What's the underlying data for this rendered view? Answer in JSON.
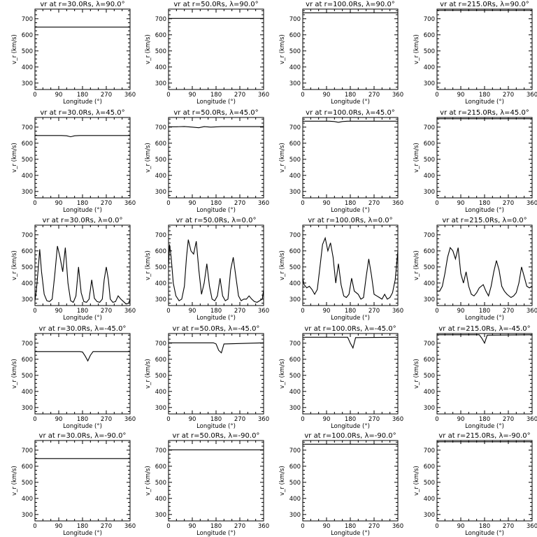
{
  "figure": {
    "xlabel": "Longitude (°)",
    "ylabel": "v_r (km/s)",
    "xticks": [
      "0",
      "90",
      "180",
      "270",
      "360"
    ],
    "yticks": [
      "300",
      "400",
      "500",
      "600",
      "700"
    ]
  },
  "chart_data": [
    {
      "type": "line",
      "title": "vr at r=30.0Rs, λ=90.0°",
      "xlim": [
        0,
        360
      ],
      "ylim": [
        260,
        760
      ],
      "series": [
        {
          "x": [
            0,
            360
          ],
          "values": [
            648,
            648
          ]
        }
      ]
    },
    {
      "type": "line",
      "title": "vr at r=50.0Rs, λ=90.0°",
      "xlim": [
        0,
        360
      ],
      "ylim": [
        260,
        760
      ],
      "series": [
        {
          "x": [
            0,
            360
          ],
          "values": [
            702,
            702
          ]
        }
      ]
    },
    {
      "type": "line",
      "title": "vr at r=100.0Rs, λ=90.0°",
      "xlim": [
        0,
        360
      ],
      "ylim": [
        260,
        760
      ],
      "series": [
        {
          "x": [
            0,
            360
          ],
          "values": [
            737,
            737
          ]
        }
      ]
    },
    {
      "type": "line",
      "title": "vr at r=215.0Rs, λ=90.0°",
      "xlim": [
        0,
        360
      ],
      "ylim": [
        260,
        760
      ],
      "series": [
        {
          "x": [
            0,
            360
          ],
          "values": [
            752,
            752
          ]
        }
      ]
    },
    {
      "type": "line",
      "title": "vr at r=30.0Rs, λ=45.0°",
      "xlim": [
        0,
        360
      ],
      "ylim": [
        260,
        760
      ],
      "series": [
        {
          "x": [
            0,
            100,
            120,
            135,
            150,
            170,
            360
          ],
          "values": [
            648,
            648,
            646,
            640,
            646,
            648,
            648
          ]
        }
      ]
    },
    {
      "type": "line",
      "title": "vr at r=50.0Rs, λ=45.0°",
      "xlim": [
        0,
        360
      ],
      "ylim": [
        260,
        760
      ],
      "series": [
        {
          "x": [
            0,
            30,
            60,
            90,
            115,
            135,
            160,
            200,
            360
          ],
          "values": [
            702,
            702,
            704,
            700,
            696,
            703,
            700,
            703,
            703
          ]
        }
      ]
    },
    {
      "type": "line",
      "title": "vr at r=100.0Rs, λ=45.0°",
      "xlim": [
        0,
        360
      ],
      "ylim": [
        260,
        760
      ],
      "series": [
        {
          "x": [
            0,
            100,
            120,
            135,
            150,
            170,
            360
          ],
          "values": [
            737,
            737,
            735,
            730,
            735,
            737,
            737
          ]
        }
      ]
    },
    {
      "type": "line",
      "title": "vr at r=215.0Rs, λ=45.0°",
      "xlim": [
        0,
        360
      ],
      "ylim": [
        260,
        760
      ],
      "series": [
        {
          "x": [
            0,
            360
          ],
          "values": [
            752,
            752
          ]
        }
      ]
    },
    {
      "type": "line",
      "title": "vr at r=30.0Rs, λ=0.0°",
      "xlim": [
        0,
        360
      ],
      "ylim": [
        260,
        760
      ],
      "series": [
        {
          "x": [
            0,
            5,
            12,
            18,
            25,
            35,
            45,
            55,
            65,
            75,
            85,
            95,
            105,
            115,
            125,
            135,
            145,
            155,
            165,
            175,
            185,
            195,
            205,
            215,
            225,
            235,
            245,
            255,
            262,
            270,
            278,
            285,
            295,
            305,
            315,
            325,
            335,
            345,
            355,
            360
          ],
          "values": [
            290,
            350,
            480,
            610,
            470,
            330,
            290,
            285,
            300,
            450,
            630,
            560,
            470,
            620,
            400,
            290,
            280,
            320,
            500,
            340,
            285,
            280,
            300,
            420,
            305,
            285,
            280,
            300,
            420,
            500,
            420,
            300,
            280,
            285,
            320,
            300,
            285,
            270,
            275,
            300
          ]
        }
      ]
    },
    {
      "type": "line",
      "title": "vr at r=50.0Rs, λ=0.0°",
      "xlim": [
        0,
        360
      ],
      "ylim": [
        260,
        760
      ],
      "series": [
        {
          "x": [
            0,
            4,
            10,
            18,
            28,
            40,
            50,
            60,
            68,
            75,
            85,
            95,
            105,
            115,
            125,
            135,
            145,
            155,
            165,
            175,
            185,
            195,
            205,
            215,
            225,
            235,
            245,
            255,
            265,
            275,
            285,
            295,
            305,
            315,
            325,
            335,
            345,
            355,
            360
          ],
          "values": [
            500,
            640,
            560,
            400,
            320,
            290,
            300,
            380,
            560,
            670,
            600,
            580,
            660,
            480,
            330,
            400,
            520,
            380,
            300,
            290,
            320,
            430,
            320,
            290,
            300,
            480,
            560,
            440,
            320,
            290,
            300,
            300,
            320,
            300,
            285,
            280,
            290,
            300,
            360
          ]
        }
      ]
    },
    {
      "type": "line",
      "title": "vr at r=100.0Rs, λ=0.0°",
      "xlim": [
        0,
        360
      ],
      "ylim": [
        260,
        760
      ],
      "series": [
        {
          "x": [
            0,
            5,
            15,
            25,
            35,
            45,
            55,
            65,
            75,
            85,
            95,
            105,
            115,
            125,
            135,
            145,
            155,
            165,
            175,
            185,
            195,
            210,
            220,
            230,
            240,
            250,
            260,
            270,
            280,
            290,
            300,
            310,
            320,
            330,
            340,
            350,
            360
          ],
          "values": [
            430,
            390,
            370,
            380,
            360,
            330,
            360,
            500,
            640,
            680,
            600,
            650,
            560,
            400,
            520,
            390,
            320,
            310,
            330,
            430,
            350,
            330,
            300,
            310,
            440,
            550,
            450,
            330,
            320,
            310,
            300,
            330,
            300,
            310,
            340,
            420,
            600
          ]
        }
      ]
    },
    {
      "type": "line",
      "title": "vr at r=215.0Rs, λ=0.0°",
      "xlim": [
        0,
        360
      ],
      "ylim": [
        260,
        760
      ],
      "series": [
        {
          "x": [
            0,
            10,
            20,
            30,
            40,
            50,
            60,
            70,
            80,
            90,
            100,
            110,
            120,
            130,
            140,
            150,
            160,
            175,
            185,
            195,
            205,
            215,
            225,
            235,
            245,
            255,
            265,
            280,
            290,
            300,
            310,
            320,
            330,
            340,
            350,
            360
          ],
          "values": [
            350,
            350,
            380,
            460,
            560,
            620,
            600,
            550,
            620,
            460,
            400,
            470,
            380,
            330,
            320,
            340,
            370,
            390,
            350,
            320,
            380,
            470,
            540,
            480,
            380,
            350,
            330,
            310,
            320,
            340,
            400,
            500,
            440,
            380,
            370,
            380
          ]
        }
      ]
    },
    {
      "type": "line",
      "title": "vr at r=30.0Rs, λ=-45.0°",
      "xlim": [
        0,
        360
      ],
      "ylim": [
        260,
        760
      ],
      "series": [
        {
          "x": [
            0,
            170,
            180,
            190,
            200,
            210,
            220,
            360
          ],
          "values": [
            648,
            648,
            645,
            620,
            590,
            625,
            648,
            648
          ]
        }
      ]
    },
    {
      "type": "line",
      "title": "vr at r=50.0Rs, λ=-45.0°",
      "xlim": [
        0,
        360
      ],
      "ylim": [
        260,
        760
      ],
      "series": [
        {
          "x": [
            0,
            170,
            180,
            190,
            200,
            210,
            360
          ],
          "values": [
            702,
            702,
            695,
            655,
            640,
            695,
            702
          ]
        }
      ]
    },
    {
      "type": "line",
      "title": "vr at r=100.0Rs, λ=-45.0°",
      "xlim": [
        0,
        360
      ],
      "ylim": [
        260,
        760
      ],
      "series": [
        {
          "x": [
            0,
            170,
            180,
            190,
            200,
            360
          ],
          "values": [
            737,
            737,
            700,
            670,
            735,
            737
          ]
        }
      ]
    },
    {
      "type": "line",
      "title": "vr at r=215.0Rs, λ=-45.0°",
      "xlim": [
        0,
        360
      ],
      "ylim": [
        260,
        760
      ],
      "series": [
        {
          "x": [
            0,
            160,
            170,
            180,
            190,
            360
          ],
          "values": [
            752,
            752,
            730,
            700,
            750,
            752
          ]
        }
      ]
    },
    {
      "type": "line",
      "title": "vr at r=30.0Rs, λ=-90.0°",
      "xlim": [
        0,
        360
      ],
      "ylim": [
        260,
        760
      ],
      "series": [
        {
          "x": [
            0,
            360
          ],
          "values": [
            648,
            648
          ]
        }
      ]
    },
    {
      "type": "line",
      "title": "vr at r=50.0Rs, λ=-90.0°",
      "xlim": [
        0,
        360
      ],
      "ylim": [
        260,
        760
      ],
      "series": [
        {
          "x": [
            0,
            360
          ],
          "values": [
            702,
            702
          ]
        }
      ]
    },
    {
      "type": "line",
      "title": "vr at r=100.0Rs, λ=-90.0°",
      "xlim": [
        0,
        360
      ],
      "ylim": [
        260,
        760
      ],
      "series": [
        {
          "x": [
            0,
            360
          ],
          "values": [
            737,
            737
          ]
        }
      ]
    },
    {
      "type": "line",
      "title": "vr at r=215.0Rs, λ=-90.0°",
      "xlim": [
        0,
        360
      ],
      "ylim": [
        260,
        760
      ],
      "series": [
        {
          "x": [
            0,
            360
          ],
          "values": [
            752,
            752
          ]
        }
      ]
    }
  ]
}
